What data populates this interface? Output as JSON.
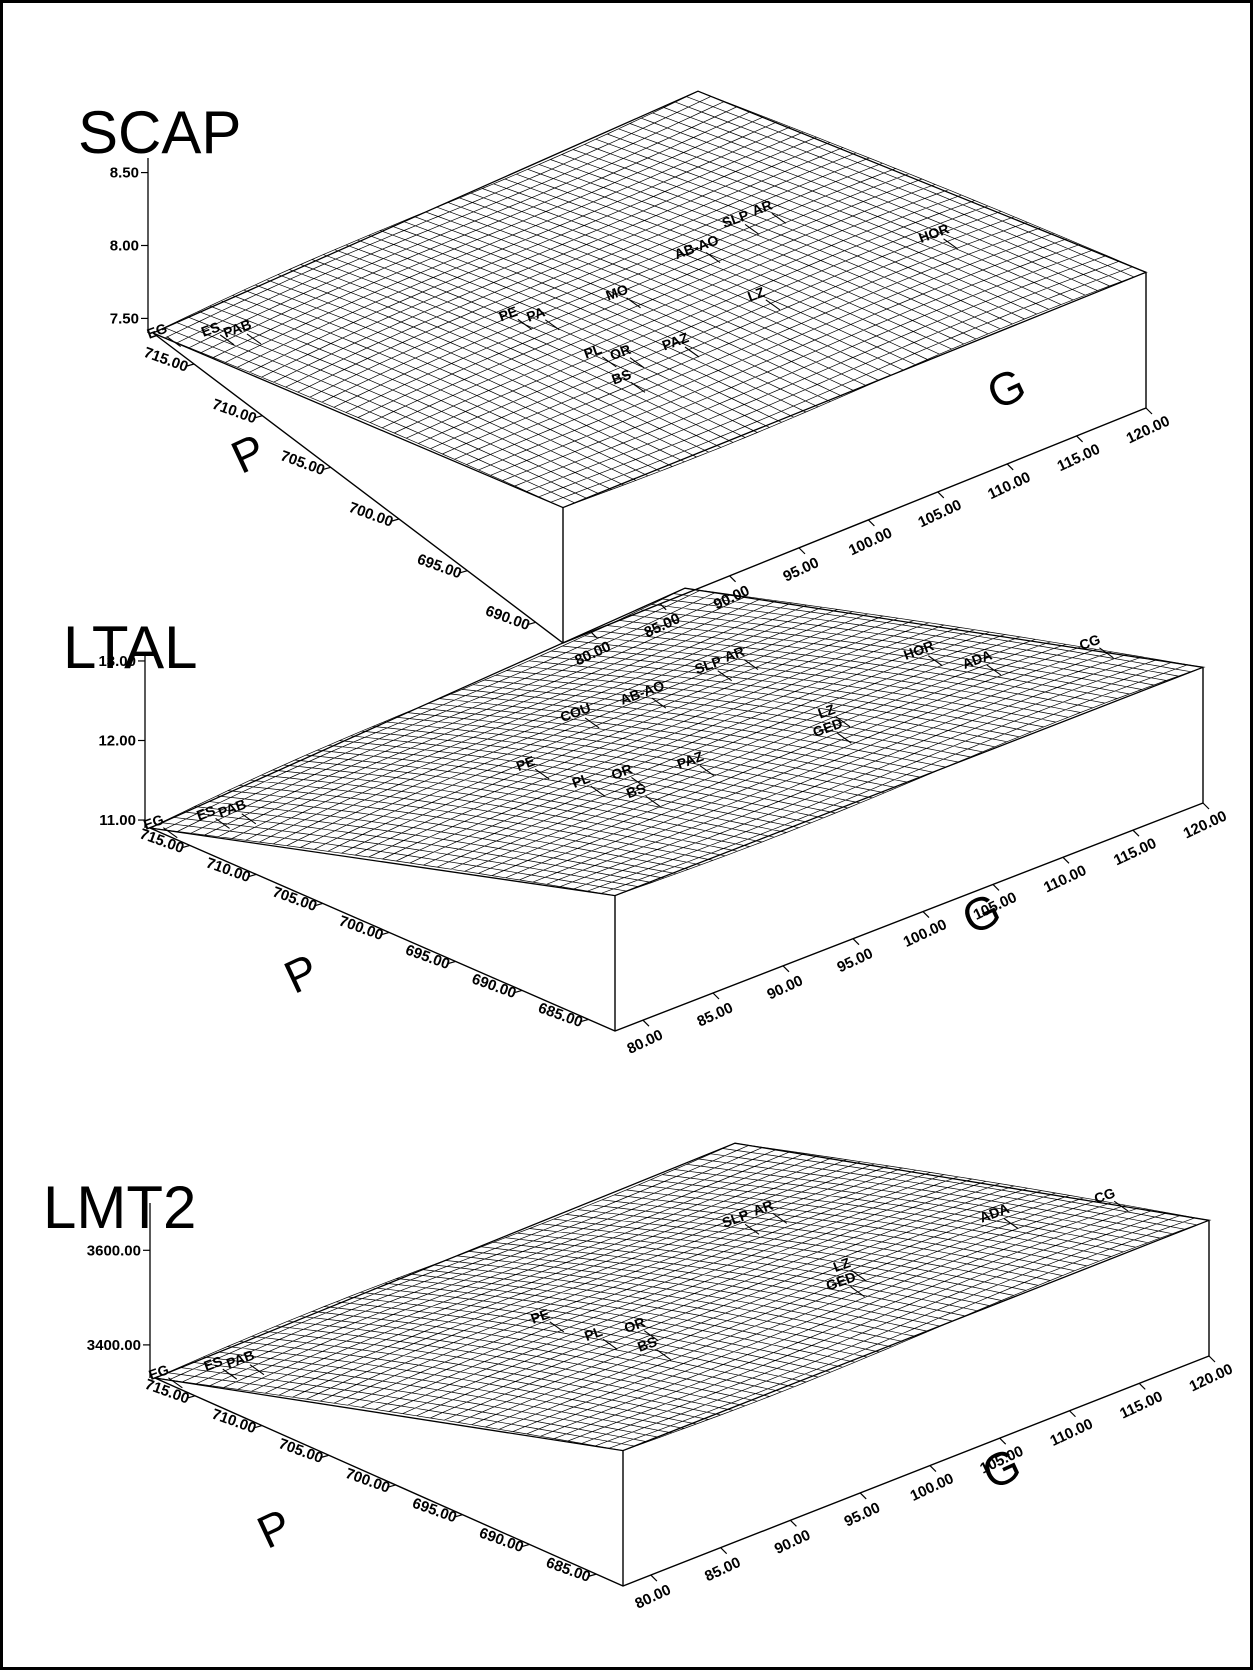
{
  "chart_data": [
    {
      "type": "surface",
      "title": "SCAP",
      "xlabel": "G",
      "ylabel": "P",
      "zlabel": "",
      "g_ticks": [
        "80.00",
        "85.00",
        "90.00",
        "95.00",
        "100.00",
        "105.00",
        "110.00",
        "115.00",
        "120.00"
      ],
      "p_ticks": [
        "715.00",
        "710.00",
        "705.00",
        "700.00",
        "695.00",
        "690.00"
      ],
      "z_ticks": [
        "7.50",
        "8.00",
        "8.50"
      ],
      "glim": [
        78,
        120
      ],
      "plim": [
        688,
        718
      ],
      "zlim": [
        7.4,
        8.6
      ],
      "surface_corners": {
        "g_min_p_max": 7.45,
        "g_max_p_max": 8.7,
        "g_min_p_min": 7.55,
        "g_max_p_min": 8.2
      },
      "annotations": [
        {
          "label": "EG",
          "g": 78,
          "p": 717
        },
        {
          "label": "ES",
          "g": 80,
          "p": 715
        },
        {
          "label": "PAB",
          "g": 81,
          "p": 714
        },
        {
          "label": "PE",
          "g": 92,
          "p": 705
        },
        {
          "label": "PA",
          "g": 93,
          "p": 704
        },
        {
          "label": "MO",
          "g": 98,
          "p": 703
        },
        {
          "label": "AB-AO",
          "g": 105,
          "p": 704
        },
        {
          "label": "SLP",
          "g": 109,
          "p": 705
        },
        {
          "label": "AR",
          "g": 111,
          "p": 705
        },
        {
          "label": "HOR",
          "g": 115,
          "p": 697
        },
        {
          "label": "LZ",
          "g": 103,
          "p": 698
        },
        {
          "label": "PL",
          "g": 92,
          "p": 699
        },
        {
          "label": "OR",
          "g": 93,
          "p": 698
        },
        {
          "label": "PAZ",
          "g": 96,
          "p": 697
        },
        {
          "label": "BS",
          "g": 91,
          "p": 696
        }
      ]
    },
    {
      "type": "surface",
      "title": "LTAL",
      "xlabel": "G",
      "ylabel": "P",
      "zlabel": "",
      "g_ticks": [
        "80.00",
        "85.00",
        "90.00",
        "95.00",
        "100.00",
        "105.00",
        "110.00",
        "115.00",
        "120.00"
      ],
      "p_ticks": [
        "715.00",
        "710.00",
        "705.00",
        "700.00",
        "695.00",
        "690.00",
        "685.00"
      ],
      "z_ticks": [
        "11.00",
        "12.00",
        "13.00"
      ],
      "glim": [
        78,
        120
      ],
      "plim": [
        683,
        718
      ],
      "zlim": [
        10.9,
        13.1
      ],
      "surface_corners": {
        "g_min_p_max": 11.0,
        "g_max_p_max": 13.2,
        "g_min_p_min": 11.3,
        "g_max_p_min": 12.3
      },
      "annotations": [
        {
          "label": "EG",
          "g": 78,
          "p": 717
        },
        {
          "label": "ES",
          "g": 80,
          "p": 715
        },
        {
          "label": "PAB",
          "g": 81,
          "p": 714
        },
        {
          "label": "COU",
          "g": 100,
          "p": 707
        },
        {
          "label": "AB-AO",
          "g": 104,
          "p": 706
        },
        {
          "label": "SLP",
          "g": 109,
          "p": 706
        },
        {
          "label": "AR",
          "g": 111,
          "p": 706
        },
        {
          "label": "HOR",
          "g": 115,
          "p": 697
        },
        {
          "label": "CG",
          "g": 120,
          "p": 690
        },
        {
          "label": "PE",
          "g": 92,
          "p": 703
        },
        {
          "label": "ADA",
          "g": 115,
          "p": 693
        },
        {
          "label": "LZ",
          "g": 105,
          "p": 694
        },
        {
          "label": "PL",
          "g": 91,
          "p": 698
        },
        {
          "label": "OR",
          "g": 93,
          "p": 697
        },
        {
          "label": "PAZ",
          "g": 96,
          "p": 695
        },
        {
          "label": "GED",
          "g": 103,
          "p": 692
        },
        {
          "label": "BS",
          "g": 91,
          "p": 694
        }
      ]
    },
    {
      "type": "surface",
      "title": "LMT2",
      "xlabel": "G",
      "ylabel": "P",
      "zlabel": "",
      "g_ticks": [
        "80.00",
        "85.00",
        "90.00",
        "95.00",
        "100.00",
        "105.00",
        "110.00",
        "115.00",
        "120.00"
      ],
      "p_ticks": [
        "715.00",
        "710.00",
        "705.00",
        "700.00",
        "695.00",
        "690.00",
        "685.00"
      ],
      "z_ticks": [
        "3400.00",
        "3600.00"
      ],
      "glim": [
        78,
        120
      ],
      "plim": [
        683,
        718
      ],
      "zlim": [
        3330,
        3700
      ],
      "surface_corners": {
        "g_min_p_max": 3330,
        "g_max_p_max": 3720,
        "g_min_p_min": 3370,
        "g_max_p_min": 3540
      },
      "annotations": [
        {
          "label": "EG",
          "g": 78,
          "p": 717
        },
        {
          "label": "ES",
          "g": 80,
          "p": 715
        },
        {
          "label": "PAB",
          "g": 81,
          "p": 714
        },
        {
          "label": "SLP",
          "g": 109,
          "p": 706
        },
        {
          "label": "AR",
          "g": 111,
          "p": 706
        },
        {
          "label": "CG",
          "g": 120,
          "p": 690
        },
        {
          "label": "PE",
          "g": 92,
          "p": 703
        },
        {
          "label": "ADA",
          "g": 115,
          "p": 693
        },
        {
          "label": "LZ",
          "g": 105,
          "p": 694
        },
        {
          "label": "PL",
          "g": 91,
          "p": 698
        },
        {
          "label": "OR",
          "g": 93,
          "p": 697
        },
        {
          "label": "GED",
          "g": 103,
          "p": 692
        },
        {
          "label": "BS",
          "g": 91,
          "p": 694
        }
      ]
    }
  ]
}
